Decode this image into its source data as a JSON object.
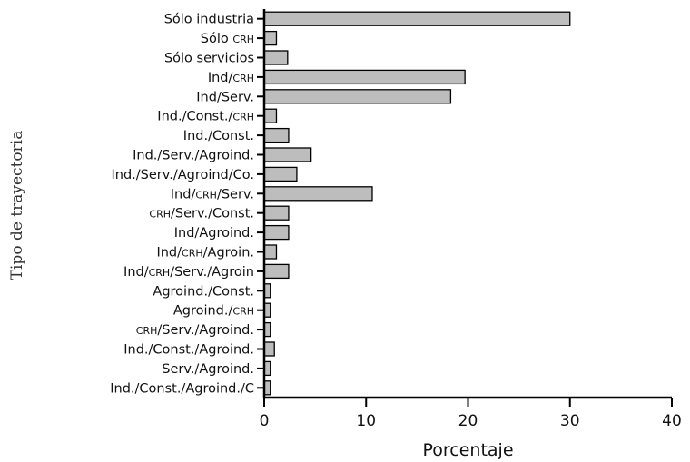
{
  "chart_data": {
    "type": "bar",
    "orientation": "horizontal",
    "xlabel": "Porcentaje",
    "ylabel": "Tipo de trayectoria",
    "xlim": [
      0,
      40
    ],
    "xticks": [
      "0",
      "10",
      "20",
      "30",
      "40"
    ],
    "grid": false,
    "bar_color": "#bdbdbd",
    "categories": [
      "Sólo industria",
      "Sólo crh",
      "Sólo servicios",
      "Ind/crh",
      "Ind/Serv.",
      "Ind./Const./crh",
      "Ind./Const.",
      "Ind./Serv./Agroind.",
      "Ind./Serv./Agroind/Co.",
      "Ind/crh/Serv.",
      "crh/Serv./Const.",
      "Ind/Agroind.",
      "Ind/crh/Agroin.",
      "Ind/crh/Serv./Agroin",
      "Agroind./Const.",
      "Agroind./crh",
      "crh/Serv./Agroind.",
      "Ind./Const./Agroind.",
      "Serv./Agroind.",
      "Ind./Const./Agroind./C"
    ],
    "values": [
      30.0,
      1.2,
      2.3,
      19.7,
      18.3,
      1.2,
      2.4,
      4.6,
      3.2,
      10.6,
      2.4,
      2.4,
      1.2,
      2.4,
      0.6,
      0.6,
      0.6,
      1.0,
      0.6,
      0.6
    ]
  }
}
